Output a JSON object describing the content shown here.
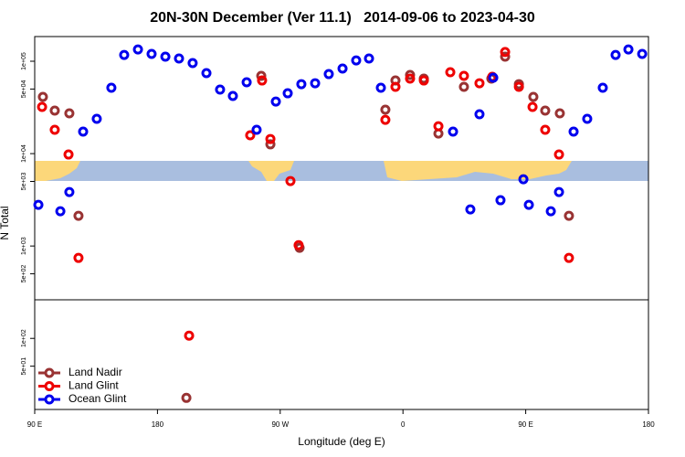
{
  "chart_data": {
    "type": "scatter",
    "title": "20N-30N December (Ver 11.1)   2014-09-06 to 2023-04-30",
    "xlabel": "Longitude (deg E)",
    "ylabel": "N Total",
    "xlim": [
      90,
      540
    ],
    "xticks": [
      {
        "value": 90,
        "label": "90 E"
      },
      180,
      {
        "value": 270,
        "label": "90 W"
      },
      {
        "value": 360,
        "label": "0"
      },
      {
        "value": 450,
        "label": "90 E"
      },
      {
        "value": 540,
        "label": "180"
      }
    ],
    "ylim": [
      17,
      185000
    ],
    "log_y": true,
    "yticks": [
      {
        "value": 100000,
        "label": "1e+05"
      },
      {
        "value": 50000,
        "label": "5e+04"
      },
      {
        "value": 10000,
        "label": "1e+04"
      },
      {
        "value": 5000,
        "label": "5e+03"
      },
      {
        "value": 1000,
        "label": "1e+03"
      },
      {
        "value": 500,
        "label": "5e+02"
      },
      {
        "value": 100,
        "label": "1e+02"
      },
      {
        "value": 50,
        "label": "5e+01"
      }
    ],
    "legend": "bottom left",
    "series": [
      {
        "name": "Land Nadir",
        "color": "#993333",
        "x": [
          96.0,
          104.7,
          115.4,
          122.1,
          256.1,
          262.8,
          284.2,
          347.1,
          354.5,
          365.2,
          375.3,
          386.0,
          404.7,
          424.8,
          434.9,
          445.0,
          455.6,
          464.3,
          475.0,
          481.7,
          201.2
        ],
        "values": [
          41100,
          29200,
          27300,
          2120,
          69500,
          12600,
          955,
          29900,
          61900,
          71000,
          64900,
          16500,
          52800,
          64900,
          112000,
          56500,
          41100,
          29200,
          27300,
          2120,
          22.7
        ]
      },
      {
        "name": "Land Glint",
        "color": "#ee0000",
        "x": [
          95.4,
          104.7,
          114.8,
          122.1,
          203.2,
          248.0,
          256.7,
          262.8,
          277.5,
          283.5,
          347.1,
          354.5,
          365.2,
          375.3,
          386.0,
          394.7,
          404.7,
          416.1,
          425.5,
          434.9,
          445.0,
          455.0,
          464.3,
          474.4,
          481.7
        ],
        "values": [
          32000,
          18100,
          9780,
          743,
          107,
          15800,
          61900,
          14400,
          5050,
          1020,
          23200,
          52800,
          64900,
          61900,
          19800,
          76100,
          69500,
          57800,
          67900,
          126000,
          52800,
          32000,
          18100,
          9780,
          743
        ]
      },
      {
        "name": "Ocean Glint",
        "color": "#0000ee",
        "x": [
          92.7,
          108.8,
          115.4,
          125.5,
          135.5,
          146.2,
          155.6,
          165.7,
          175.7,
          185.8,
          195.8,
          205.8,
          215.9,
          225.9,
          235.3,
          245.4,
          252.7,
          266.8,
          275.5,
          285.5,
          295.6,
          305.6,
          315.7,
          325.7,
          335.1,
          343.8,
          396.7,
          409.4,
          416.1,
          426.2,
          431.5,
          448.3,
          452.3,
          468.4,
          474.4,
          485.1,
          495.1,
          506.5,
          515.9,
          525.3,
          535.4
        ],
        "values": [
          2790,
          2380,
          3840,
          17300,
          23800,
          51600,
          117000,
          134000,
          120000,
          112000,
          107000,
          95600,
          74300,
          49300,
          42100,
          59200,
          18100,
          36600,
          45000,
          56500,
          57800,
          72600,
          83400,
          102000,
          107000,
          51600,
          17300,
          2490,
          26700,
          66400,
          3130,
          5280,
          2790,
          2380,
          3840,
          17300,
          23800,
          51600,
          117000,
          134000,
          120000
        ]
      }
    ]
  }
}
